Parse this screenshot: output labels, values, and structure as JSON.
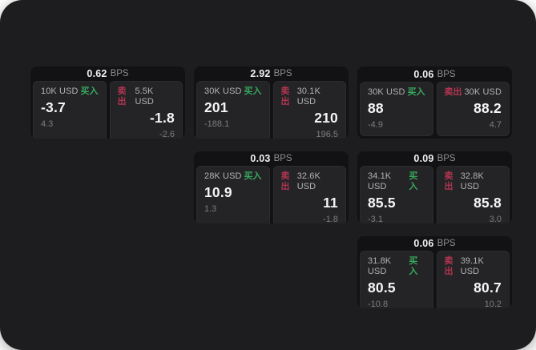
{
  "colors": {
    "page_background": "#1d1d1f",
    "card_background": "#121214",
    "panel_background": "#242427",
    "buy_green": "#36a95c",
    "sell_red": "#b23550"
  },
  "labels": {
    "bps_unit": "BPS",
    "buy": "买入",
    "sell": "卖出"
  },
  "cards": [
    {
      "grid": {
        "row": 1,
        "col": 1
      },
      "bps": "0.62",
      "buy": {
        "amount": "10K USD",
        "price": "-3.7",
        "change": "4.3"
      },
      "sell": {
        "amount": "5.5K USD",
        "price": "-1.8",
        "change": "-2.6"
      }
    },
    {
      "grid": {
        "row": 1,
        "col": 2
      },
      "bps": "2.92",
      "buy": {
        "amount": "30K USD",
        "price": "201",
        "change": "-188.1"
      },
      "sell": {
        "amount": "30.1K USD",
        "price": "210",
        "change": "196.5"
      }
    },
    {
      "grid": {
        "row": 1,
        "col": 3
      },
      "bps": "0.06",
      "buy": {
        "amount": "30K USD",
        "price": "88",
        "change": "-4.9"
      },
      "sell": {
        "amount": "30K USD",
        "price": "88.2",
        "change": "4.7"
      }
    },
    {
      "grid": {
        "row": 2,
        "col": 2
      },
      "bps": "0.03",
      "buy": {
        "amount": "28K USD",
        "price": "10.9",
        "change": "1.3"
      },
      "sell": {
        "amount": "32.6K USD",
        "price": "11",
        "change": "-1.8"
      }
    },
    {
      "grid": {
        "row": 2,
        "col": 3
      },
      "bps": "0.09",
      "buy": {
        "amount": "34.1K USD",
        "price": "85.5",
        "change": "-3.1"
      },
      "sell": {
        "amount": "32.8K USD",
        "price": "85.8",
        "change": "3.0"
      }
    },
    {
      "grid": {
        "row": 3,
        "col": 3
      },
      "bps": "0.06",
      "buy": {
        "amount": "31.8K USD",
        "price": "80.5",
        "change": "-10.8"
      },
      "sell": {
        "amount": "39.1K USD",
        "price": "80.7",
        "change": "10.2"
      }
    }
  ]
}
